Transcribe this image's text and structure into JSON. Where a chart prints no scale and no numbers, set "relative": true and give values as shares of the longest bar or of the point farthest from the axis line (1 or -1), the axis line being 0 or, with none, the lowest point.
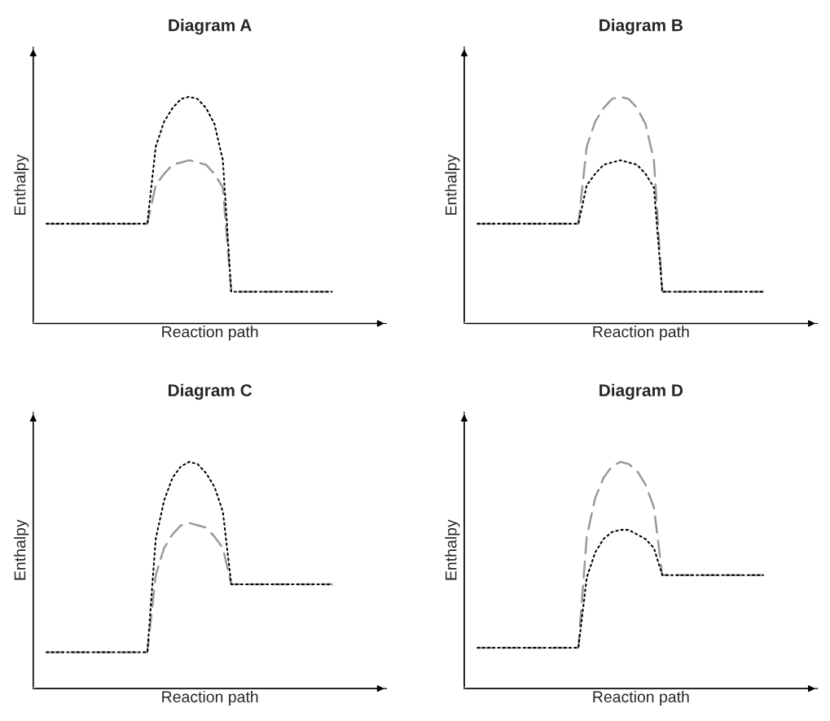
{
  "chart_data": [
    {
      "type": "line",
      "title": "Diagram A",
      "xlabel": "Reaction path",
      "ylabel": "Enthalpy",
      "relative": true,
      "tick_labels": false,
      "grid": false,
      "legend": false,
      "categories": [
        null,
        null,
        null,
        null,
        null,
        null,
        null,
        null,
        null,
        null,
        null,
        null,
        null,
        null,
        null,
        null,
        null,
        null,
        null,
        null,
        null,
        null,
        null,
        null,
        null,
        null,
        null,
        null,
        null,
        null,
        null,
        null,
        null,
        null,
        null
      ],
      "series": [
        {
          "color": "#000000",
          "line_style": "dotted",
          "values": [
            0.44,
            0.44,
            0.44,
            0.44,
            0.44,
            0.44,
            0.44,
            0.44,
            0.44,
            0.44,
            0.44,
            0.44,
            0.44,
            0.78,
            0.89,
            0.95,
            0.99,
            1,
            0.99,
            0.95,
            0.88,
            0.72,
            0.14,
            0.14,
            0.14,
            0.14,
            0.14,
            0.14,
            0.14,
            0.14,
            0.14,
            0.14,
            0.14,
            0.14,
            0.14
          ]
        },
        {
          "color": "#999999",
          "line_style": "dashed",
          "values": [
            0.44,
            0.44,
            0.44,
            0.44,
            0.44,
            0.44,
            0.44,
            0.44,
            0.44,
            0.44,
            0.44,
            0.44,
            0.44,
            0.61,
            0.66,
            0.7,
            0.71,
            0.72,
            0.71,
            0.7,
            0.66,
            0.6,
            0.14,
            0.14,
            0.14,
            0.14,
            0.14,
            0.14,
            0.14,
            0.14,
            0.14,
            0.14,
            0.14,
            0.14,
            0.14
          ]
        }
      ]
    },
    {
      "type": "line",
      "title": "Diagram B",
      "xlabel": "Reaction path",
      "ylabel": "Enthalpy",
      "relative": true,
      "tick_labels": false,
      "grid": false,
      "legend": false,
      "categories": [
        null,
        null,
        null,
        null,
        null,
        null,
        null,
        null,
        null,
        null,
        null,
        null,
        null,
        null,
        null,
        null,
        null,
        null,
        null,
        null,
        null,
        null,
        null,
        null,
        null,
        null,
        null,
        null,
        null,
        null,
        null,
        null,
        null,
        null,
        null
      ],
      "series": [
        {
          "color": "#000000",
          "line_style": "dotted",
          "values": [
            0.44,
            0.44,
            0.44,
            0.44,
            0.44,
            0.44,
            0.44,
            0.44,
            0.44,
            0.44,
            0.44,
            0.44,
            0.44,
            0.61,
            0.66,
            0.7,
            0.71,
            0.72,
            0.71,
            0.7,
            0.66,
            0.6,
            0.14,
            0.14,
            0.14,
            0.14,
            0.14,
            0.14,
            0.14,
            0.14,
            0.14,
            0.14,
            0.14,
            0.14,
            0.14
          ]
        },
        {
          "color": "#999999",
          "line_style": "dashed",
          "values": [
            0.44,
            0.44,
            0.44,
            0.44,
            0.44,
            0.44,
            0.44,
            0.44,
            0.44,
            0.44,
            0.44,
            0.44,
            0.44,
            0.78,
            0.89,
            0.95,
            0.99,
            1,
            0.99,
            0.95,
            0.88,
            0.72,
            0.14,
            0.14,
            0.14,
            0.14,
            0.14,
            0.14,
            0.14,
            0.14,
            0.14,
            0.14,
            0.14,
            0.14,
            0.14
          ]
        }
      ]
    },
    {
      "type": "line",
      "title": "Diagram C",
      "xlabel": "Reaction path",
      "ylabel": "Enthalpy",
      "relative": true,
      "tick_labels": false,
      "grid": false,
      "legend": false,
      "categories": [
        null,
        null,
        null,
        null,
        null,
        null,
        null,
        null,
        null,
        null,
        null,
        null,
        null,
        null,
        null,
        null,
        null,
        null,
        null,
        null,
        null,
        null,
        null,
        null,
        null,
        null,
        null,
        null,
        null,
        null,
        null,
        null,
        null,
        null,
        null
      ],
      "series": [
        {
          "color": "#000000",
          "line_style": "dotted",
          "values": [
            0.16,
            0.16,
            0.16,
            0.16,
            0.16,
            0.16,
            0.16,
            0.16,
            0.16,
            0.16,
            0.16,
            0.16,
            0.16,
            0.66,
            0.83,
            0.93,
            0.98,
            1,
            0.99,
            0.95,
            0.89,
            0.78,
            0.46,
            0.46,
            0.46,
            0.46,
            0.46,
            0.46,
            0.46,
            0.46,
            0.46,
            0.46,
            0.46,
            0.46,
            0.46
          ]
        },
        {
          "color": "#999999",
          "line_style": "dashed",
          "values": [
            0.16,
            0.16,
            0.16,
            0.16,
            0.16,
            0.16,
            0.16,
            0.16,
            0.16,
            0.16,
            0.16,
            0.16,
            0.16,
            0.5,
            0.62,
            0.68,
            0.72,
            0.73,
            0.72,
            0.71,
            0.67,
            0.62,
            0.46,
            0.46,
            0.46,
            0.46,
            0.46,
            0.46,
            0.46,
            0.46,
            0.46,
            0.46,
            0.46,
            0.46,
            0.46
          ]
        }
      ]
    },
    {
      "type": "line",
      "title": "Diagram D",
      "xlabel": "Reaction path",
      "ylabel": "Enthalpy",
      "relative": true,
      "tick_labels": false,
      "grid": false,
      "legend": false,
      "categories": [
        null,
        null,
        null,
        null,
        null,
        null,
        null,
        null,
        null,
        null,
        null,
        null,
        null,
        null,
        null,
        null,
        null,
        null,
        null,
        null,
        null,
        null,
        null,
        null,
        null,
        null,
        null,
        null,
        null,
        null,
        null,
        null,
        null,
        null,
        null
      ],
      "series": [
        {
          "color": "#000000",
          "line_style": "dotted",
          "values": [
            0.18,
            0.18,
            0.18,
            0.18,
            0.18,
            0.18,
            0.18,
            0.18,
            0.18,
            0.18,
            0.18,
            0.18,
            0.18,
            0.49,
            0.6,
            0.66,
            0.69,
            0.7,
            0.7,
            0.68,
            0.66,
            0.62,
            0.5,
            0.5,
            0.5,
            0.5,
            0.5,
            0.5,
            0.5,
            0.5,
            0.5,
            0.5,
            0.5,
            0.5,
            0.5
          ]
        },
        {
          "color": "#999999",
          "line_style": "dashed",
          "values": [
            0.18,
            0.18,
            0.18,
            0.18,
            0.18,
            0.18,
            0.18,
            0.18,
            0.18,
            0.18,
            0.18,
            0.18,
            0.18,
            0.67,
            0.84,
            0.93,
            0.98,
            1,
            0.99,
            0.96,
            0.9,
            0.8,
            0.5,
            0.5,
            0.5,
            0.5,
            0.5,
            0.5,
            0.5,
            0.5,
            0.5,
            0.5,
            0.5,
            0.5,
            0.5
          ]
        }
      ]
    }
  ]
}
